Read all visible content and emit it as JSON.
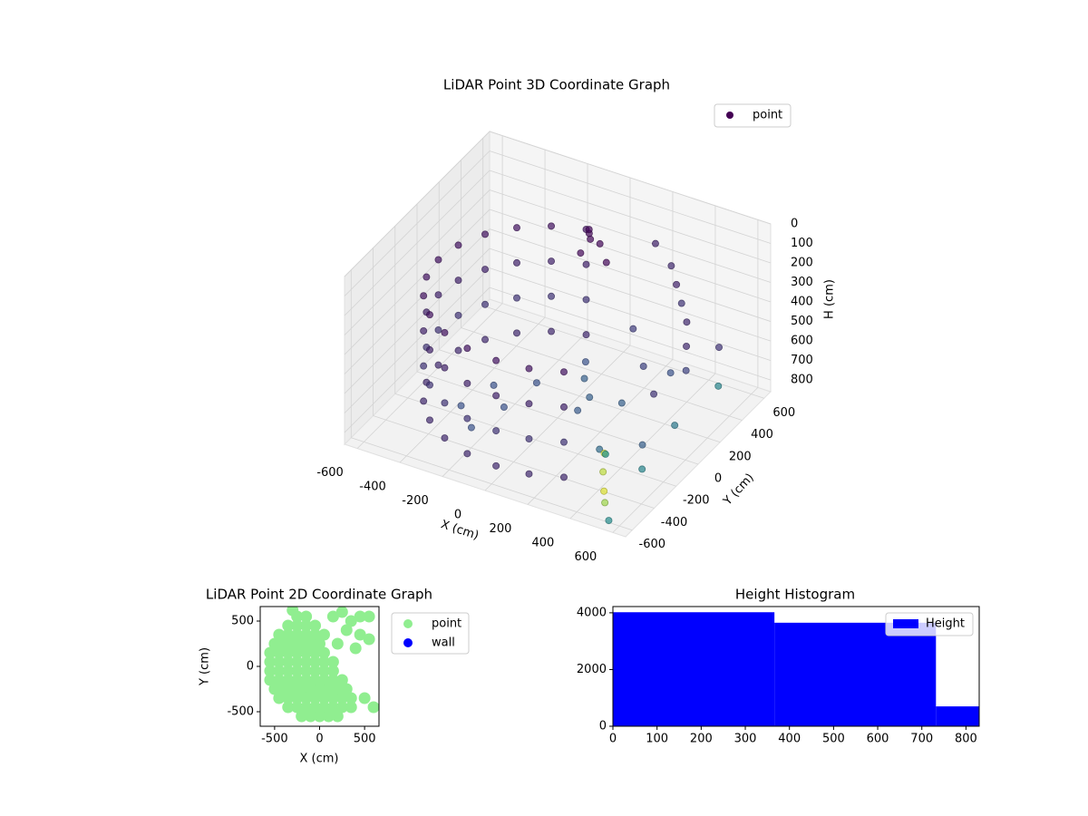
{
  "chart_data": [
    {
      "type": "scatter3d",
      "title": "LiDAR Point 3D Coordinate Graph",
      "xlabel": "X (cm)",
      "ylabel": "Y (cm)",
      "zlabel": "H (cm)",
      "xlim": [
        -660,
        660
      ],
      "ylim": [
        -660,
        660
      ],
      "zlim": [
        0,
        860
      ],
      "zinvert": true,
      "xticks": [
        -600,
        -400,
        -200,
        0,
        200,
        400,
        600
      ],
      "yticks": [
        -600,
        -400,
        -200,
        0,
        200,
        400,
        600
      ],
      "zticks": [
        0,
        100,
        200,
        300,
        400,
        500,
        600,
        700,
        800
      ],
      "grid": true,
      "legend": "upper right",
      "colormap": "viridis",
      "series": [
        {
          "name": "point",
          "x": [
            -145,
            -145,
            -145,
            -145,
            -280,
            -280,
            -280,
            -280,
            -396,
            -396,
            -396,
            -396,
            -485,
            -485,
            -485,
            -485,
            -541,
            -541,
            -541,
            -541,
            -560,
            -560,
            -560,
            -560,
            -541,
            -541,
            -541,
            -541,
            -485,
            -485,
            -485,
            -485,
            -396,
            -396,
            -396,
            -396,
            -280,
            -280,
            -280,
            -280,
            -145,
            -145,
            -145,
            -145,
            0,
            0,
            0,
            0,
            145,
            145,
            145,
            145,
            280,
            280,
            280,
            280,
            -120,
            -80,
            -150,
            -100,
            -60,
            -130,
            150,
            250,
            300,
            350,
            400,
            200,
            300,
            400,
            450,
            500,
            350,
            250,
            500,
            550,
            450,
            300,
            600,
            100,
            150,
            120,
            80,
            450,
            420,
            480,
            400,
            380,
            500,
            550,
            -300,
            -200,
            -350,
            -150,
            -250
          ],
          "y": [
            541,
            541,
            541,
            541,
            485,
            485,
            485,
            485,
            396,
            396,
            396,
            396,
            280,
            280,
            280,
            280,
            145,
            145,
            145,
            145,
            0,
            0,
            0,
            0,
            -145,
            -145,
            -145,
            -145,
            -280,
            -280,
            -280,
            -280,
            -396,
            -396,
            -396,
            -396,
            -485,
            -485,
            -485,
            -485,
            -541,
            -541,
            -541,
            -541,
            -560,
            -560,
            -560,
            -560,
            -541,
            -541,
            -541,
            -541,
            -485,
            -485,
            -485,
            -485,
            520,
            540,
            500,
            480,
            560,
            550,
            600,
            550,
            500,
            450,
            400,
            300,
            200,
            100,
            300,
            200,
            350,
            100,
            500,
            0,
            -100,
            -200,
            300,
            50,
            0,
            -50,
            100,
            -450,
            -400,
            -500,
            -350,
            -300,
            -200,
            -600,
            0,
            -100,
            -200,
            100,
            -300
          ],
          "values": [
            250,
            430,
            610,
            790,
            250,
            430,
            610,
            790,
            250,
            430,
            610,
            790,
            250,
            430,
            610,
            790,
            250,
            430,
            610,
            790,
            250,
            430,
            610,
            790,
            250,
            430,
            610,
            790,
            250,
            430,
            610,
            790,
            250,
            430,
            610,
            790,
            250,
            430,
            610,
            790,
            250,
            430,
            610,
            790,
            250,
            430,
            610,
            790,
            250,
            430,
            610,
            790,
            250,
            430,
            610,
            790,
            250,
            300,
            350,
            200,
            400,
            300,
            250,
            300,
            350,
            400,
            450,
            500,
            600,
            650,
            500,
            550,
            700,
            750,
            600,
            700,
            780,
            800,
            650,
            650,
            700,
            750,
            600,
            820,
            760,
            840,
            700,
            740,
            830,
            850,
            800,
            820,
            810,
            790,
            830
          ],
          "c": [
            0.05,
            0.1,
            0.15,
            0.12,
            0.05,
            0.1,
            0.15,
            0.12,
            0.05,
            0.1,
            0.15,
            0.12,
            0.05,
            0.1,
            0.15,
            0.12,
            0.05,
            0.1,
            0.15,
            0.12,
            0.05,
            0.1,
            0.15,
            0.12,
            0.05,
            0.1,
            0.15,
            0.12,
            0.05,
            0.1,
            0.15,
            0.12,
            0.05,
            0.1,
            0.15,
            0.12,
            0.05,
            0.1,
            0.15,
            0.12,
            0.05,
            0.1,
            0.15,
            0.12,
            0.05,
            0.1,
            0.15,
            0.12,
            0.05,
            0.1,
            0.15,
            0.12,
            0.05,
            0.1,
            0.15,
            0.12,
            0.02,
            0.02,
            0.02,
            0.02,
            0.02,
            0.02,
            0.1,
            0.12,
            0.1,
            0.15,
            0.12,
            0.18,
            0.2,
            0.15,
            0.12,
            0.2,
            0.25,
            0.3,
            0.15,
            0.4,
            0.3,
            0.35,
            0.45,
            0.3,
            0.3,
            0.28,
            0.25,
            0.95,
            0.9,
            0.85,
            0.93,
            0.5,
            0.45,
            0.48,
            0.25,
            0.25,
            0.25,
            0.25,
            0.25
          ]
        }
      ]
    },
    {
      "type": "scatter",
      "title": "LiDAR Point 2D Coordinate Graph",
      "xlabel": "X (cm)",
      "ylabel": "Y (cm)",
      "xlim": [
        -660,
        660
      ],
      "ylim": [
        -660,
        660
      ],
      "xticks": [
        -500,
        0,
        500
      ],
      "yticks": [
        -500,
        0,
        500
      ],
      "legend": "outside right",
      "series": [
        {
          "name": "point",
          "color": "#90ee90",
          "x": [
            -250,
            -150,
            -350,
            -250,
            -150,
            -50,
            -450,
            -350,
            -250,
            -150,
            -50,
            50,
            -500,
            -400,
            -300,
            -200,
            -100,
            0,
            -550,
            -450,
            -350,
            -250,
            -150,
            -50,
            50,
            -550,
            -450,
            -350,
            -250,
            -150,
            -50,
            50,
            150,
            -550,
            -450,
            -350,
            -250,
            -150,
            -50,
            50,
            150,
            -550,
            -450,
            -350,
            -250,
            -150,
            -50,
            50,
            150,
            250,
            -500,
            -400,
            -300,
            -200,
            -100,
            0,
            100,
            200,
            300,
            -450,
            -350,
            -250,
            -150,
            -50,
            50,
            150,
            250,
            350,
            -350,
            -250,
            -150,
            -50,
            50,
            150,
            250,
            350,
            -200,
            -100,
            0,
            100,
            200,
            150,
            250,
            350,
            450,
            550,
            300,
            450,
            550,
            200,
            400,
            500,
            600,
            -300
          ],
          "y": [
            550,
            550,
            450,
            450,
            450,
            450,
            350,
            350,
            350,
            350,
            350,
            350,
            250,
            250,
            250,
            250,
            250,
            250,
            150,
            150,
            150,
            150,
            150,
            150,
            150,
            50,
            50,
            50,
            50,
            50,
            50,
            50,
            50,
            -50,
            -50,
            -50,
            -50,
            -50,
            -50,
            -50,
            -50,
            -150,
            -150,
            -150,
            -150,
            -150,
            -150,
            -150,
            -150,
            -150,
            -250,
            -250,
            -250,
            -250,
            -250,
            -250,
            -250,
            -250,
            -250,
            -350,
            -350,
            -350,
            -350,
            -350,
            -350,
            -350,
            -350,
            -350,
            -450,
            -450,
            -450,
            -450,
            -450,
            -450,
            -450,
            -450,
            -550,
            -550,
            -550,
            -550,
            -550,
            550,
            600,
            500,
            550,
            550,
            400,
            350,
            300,
            250,
            200,
            -350,
            -450,
            620
          ]
        },
        {
          "name": "wall",
          "color": "#0000ff",
          "x": [],
          "y": []
        }
      ]
    },
    {
      "type": "histogram",
      "title": "Height Histogram",
      "bins": [
        0,
        366,
        732,
        830
      ],
      "xlim": [
        0,
        830
      ],
      "ylim": [
        0,
        4220
      ],
      "xticks": [
        0,
        100,
        200,
        300,
        400,
        500,
        600,
        700,
        800
      ],
      "yticks": [
        0,
        2000,
        4000
      ],
      "legend": "upper right",
      "series": [
        {
          "name": "Height",
          "color": "#0000ff",
          "values": [
            4020,
            3650,
            700
          ]
        }
      ]
    }
  ]
}
